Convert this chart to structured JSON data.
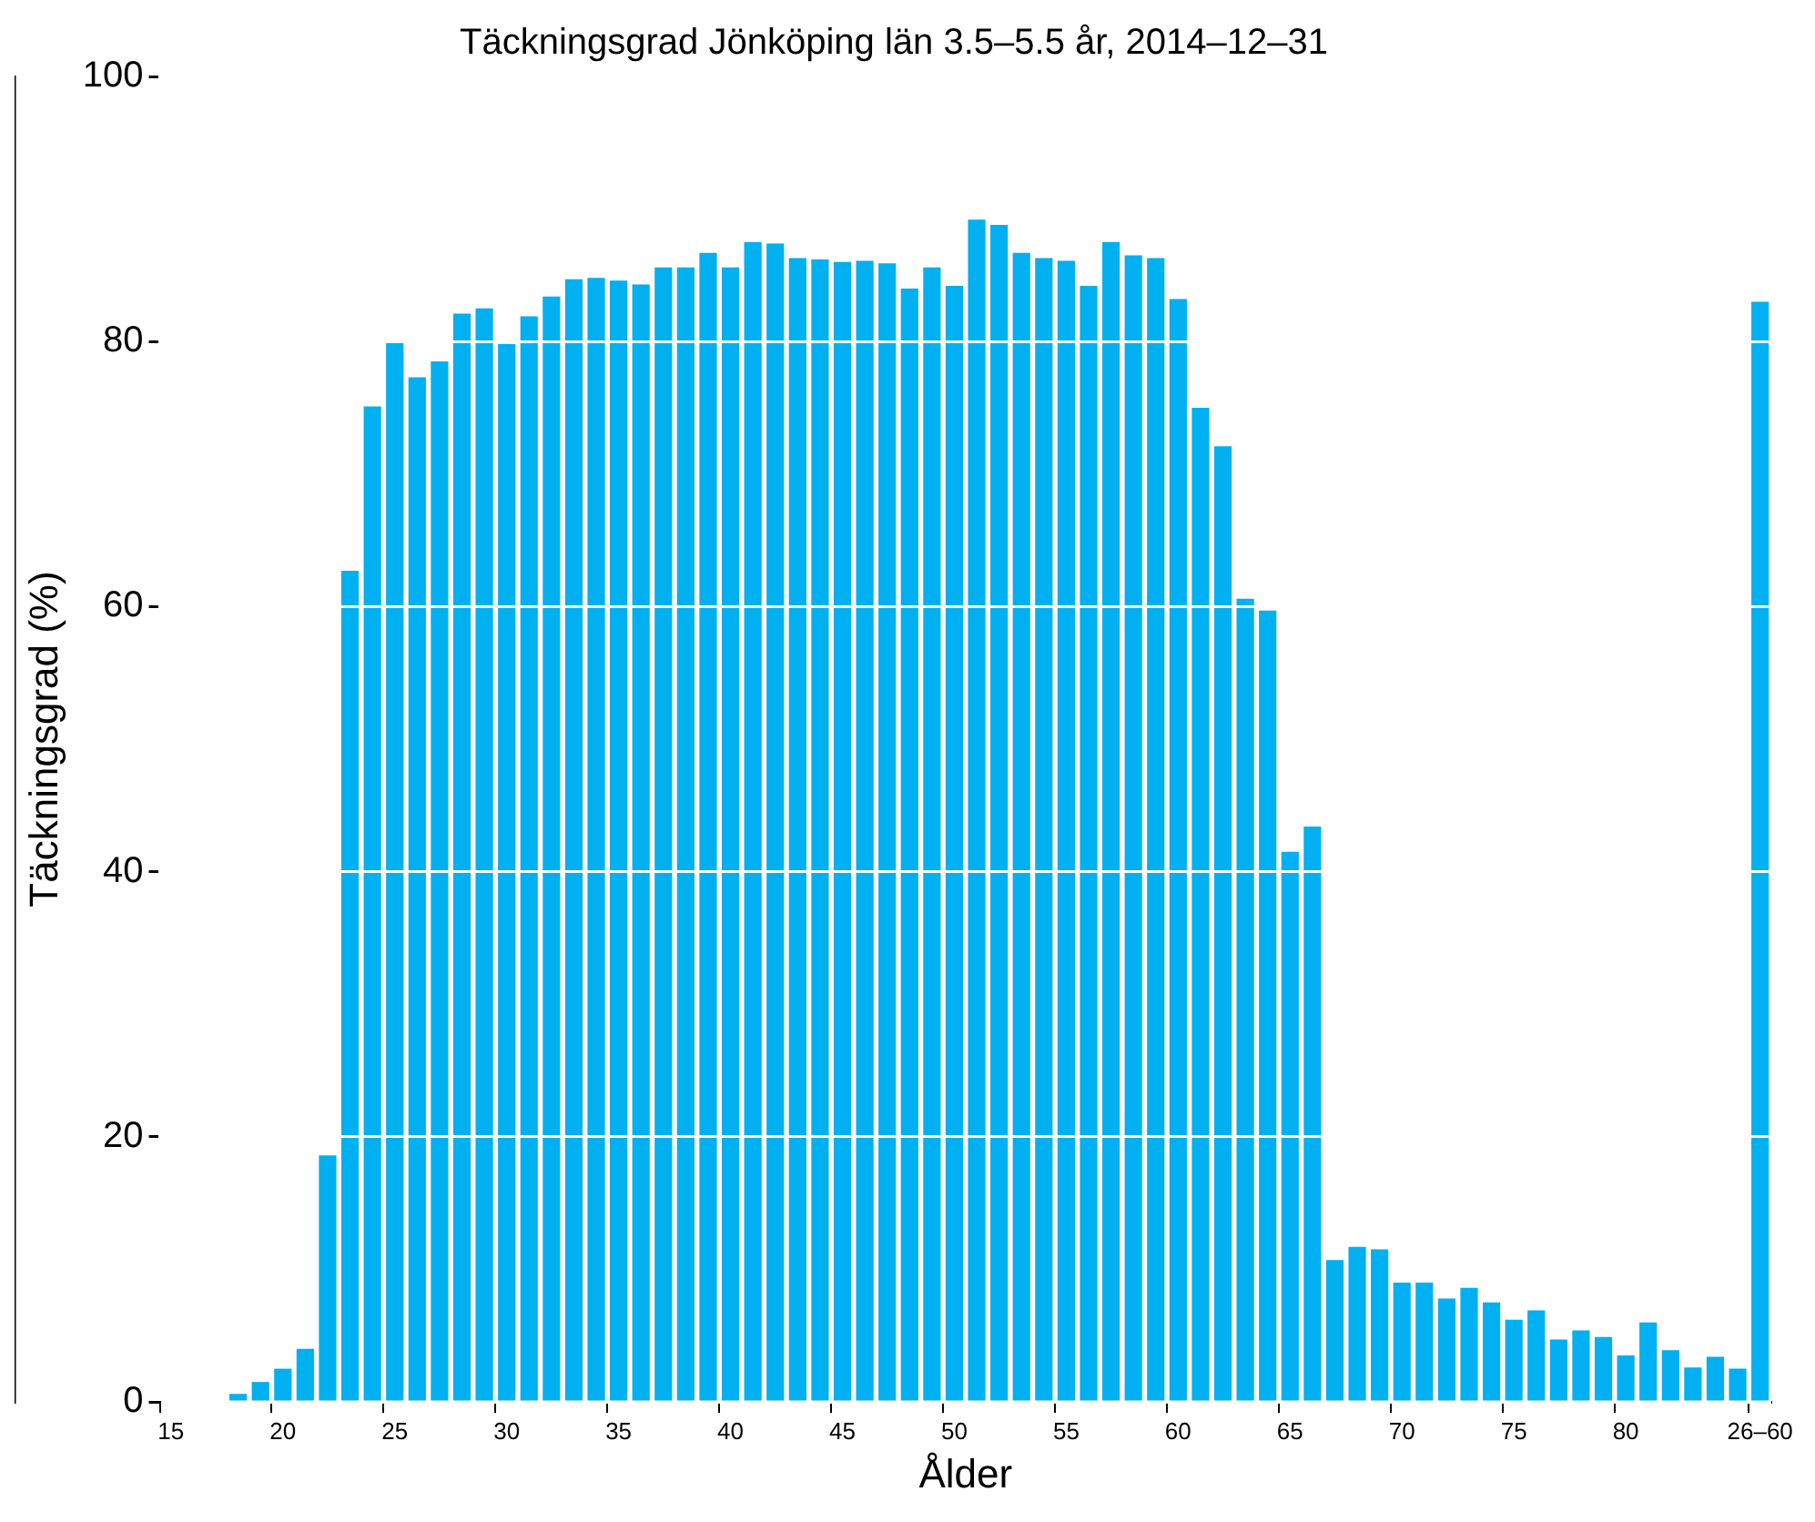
{
  "chart_data": {
    "type": "bar",
    "title": "Täckningsgrad Jönköping län 3.5–5.5 år, 2014–12–31",
    "xlabel": "Ålder",
    "ylabel": "Täckningsgrad (%)",
    "categories": [
      "15",
      null,
      null,
      null,
      null,
      "20",
      null,
      null,
      null,
      null,
      "25",
      null,
      null,
      null,
      null,
      "30",
      null,
      null,
      null,
      null,
      "35",
      null,
      null,
      null,
      null,
      "40",
      null,
      null,
      null,
      null,
      "45",
      null,
      null,
      null,
      null,
      "50",
      null,
      null,
      null,
      null,
      "55",
      null,
      null,
      null,
      null,
      "60",
      null,
      null,
      null,
      null,
      "65",
      null,
      null,
      null,
      null,
      "70",
      null,
      null,
      null,
      null,
      "75",
      null,
      null,
      null,
      null,
      "80",
      null,
      null,
      null,
      null,
      null,
      "26–60"
    ],
    "values": [
      null,
      null,
      null,
      0.6,
      1.5,
      2.5,
      4.0,
      18.6,
      62.7,
      75.1,
      79.9,
      77.3,
      78.5,
      82.1,
      82.5,
      79.8,
      81.9,
      83.4,
      84.7,
      84.8,
      84.6,
      84.3,
      85.6,
      85.6,
      86.7,
      85.6,
      87.5,
      87.4,
      86.3,
      86.2,
      86.0,
      86.1,
      85.9,
      84.0,
      85.6,
      84.2,
      89.2,
      88.8,
      86.7,
      86.3,
      86.1,
      84.2,
      87.5,
      86.5,
      86.3,
      83.2,
      75.0,
      72.1,
      60.6,
      59.7,
      41.5,
      43.4,
      10.7,
      11.7,
      11.5,
      9.0,
      9.0,
      7.8,
      8.6,
      7.5,
      6.2,
      6.9,
      4.7,
      5.4,
      4.9,
      3.5,
      6.0,
      3.9,
      2.6,
      3.4,
      2.5,
      83.0
    ],
    "color": "#00b0f0",
    "ylim": [
      0,
      100
    ],
    "yticks": [
      0,
      20,
      40,
      60,
      80,
      100
    ],
    "grid": "y"
  }
}
